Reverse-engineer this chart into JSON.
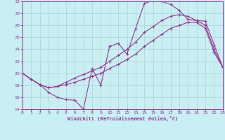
{
  "xlabel": "Windchill (Refroidissement éolien,°C)",
  "bg_color": "#c8eff2",
  "line_color": "#993399",
  "grid_color": "#b0d8dc",
  "xmin": 0,
  "xmax": 23,
  "ymin": 14,
  "ymax": 32,
  "yticks": [
    14,
    16,
    18,
    20,
    22,
    24,
    26,
    28,
    30,
    32
  ],
  "line1_x": [
    0,
    1,
    2,
    3,
    4,
    5,
    6,
    7,
    8,
    9,
    10,
    11,
    12,
    13,
    14,
    15,
    16,
    17,
    18,
    19,
    20,
    21,
    22,
    23
  ],
  "line1_y": [
    20.0,
    19.0,
    18.1,
    16.8,
    16.0,
    15.6,
    15.5,
    14.0,
    20.8,
    18.0,
    24.5,
    25.0,
    23.2,
    27.5,
    31.7,
    32.1,
    32.0,
    31.5,
    30.5,
    29.0,
    28.8,
    28.7,
    24.8,
    21.0
  ],
  "line2_x": [
    0,
    1,
    2,
    3,
    4,
    5,
    6,
    7,
    8,
    9,
    10,
    11,
    12,
    13,
    14,
    15,
    16,
    17,
    18,
    19,
    20,
    21,
    22,
    23
  ],
  "line2_y": [
    20.0,
    19.0,
    18.1,
    17.6,
    17.8,
    18.1,
    18.5,
    19.0,
    19.5,
    20.0,
    20.8,
    21.5,
    22.3,
    23.2,
    24.5,
    25.5,
    26.5,
    27.5,
    28.0,
    28.5,
    28.5,
    27.5,
    23.5,
    21.0
  ],
  "line3_x": [
    0,
    1,
    2,
    3,
    4,
    5,
    6,
    7,
    8,
    9,
    10,
    11,
    12,
    13,
    14,
    15,
    16,
    17,
    18,
    19,
    20,
    21,
    22,
    23
  ],
  "line3_y": [
    20.0,
    19.0,
    18.1,
    17.6,
    17.8,
    18.5,
    19.2,
    19.8,
    20.4,
    21.0,
    22.0,
    23.0,
    24.0,
    25.2,
    26.8,
    27.8,
    28.8,
    29.5,
    29.8,
    29.5,
    28.8,
    28.0,
    24.0,
    21.0
  ]
}
